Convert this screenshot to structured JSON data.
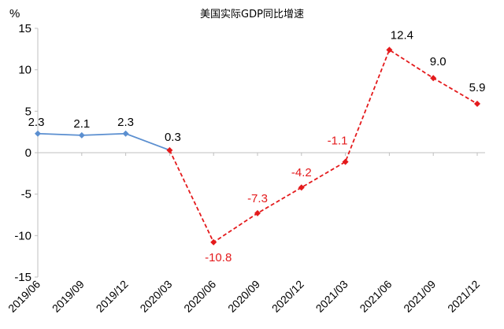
{
  "chart_data": {
    "type": "line",
    "title": "美国实际GDP同比增速",
    "y_unit": "%",
    "categories": [
      "2019/06",
      "2019/09",
      "2019/12",
      "2020/03",
      "2020/06",
      "2020/09",
      "2020/12",
      "2021/03",
      "2021/06",
      "2021/09",
      "2021/12"
    ],
    "values": [
      2.3,
      2.1,
      2.3,
      0.3,
      -10.8,
      -7.3,
      -4.2,
      -1.1,
      12.4,
      9.0,
      5.9
    ],
    "value_labels": [
      "2.3",
      "2.1",
      "2.3",
      "0.3",
      "-10.8",
      "-7.3",
      "-4.2",
      "-1.1",
      "12.4",
      "9.0",
      "5.9"
    ],
    "ylim": [
      -15,
      15
    ],
    "yticks": [
      "15",
      "10",
      "5",
      "0",
      "-5",
      "-10",
      "-15"
    ],
    "ytick_values": [
      15,
      10,
      5,
      0,
      -5,
      -10,
      -15
    ],
    "grid": false,
    "legend": "none",
    "series_styles": [
      {
        "from_index": 0,
        "to_index": 3,
        "color": "#5b8fd0",
        "line_style": "solid",
        "marker": "diamond"
      },
      {
        "from_index": 3,
        "to_index": 10,
        "color": "#e41a1c",
        "line_style": "dashed",
        "marker": "diamond"
      }
    ],
    "label_colors": [
      "#000000",
      "#000000",
      "#000000",
      "#000000",
      "#e41a1c",
      "#e41a1c",
      "#e41a1c",
      "#e41a1c",
      "#000000",
      "#000000",
      "#000000"
    ]
  }
}
